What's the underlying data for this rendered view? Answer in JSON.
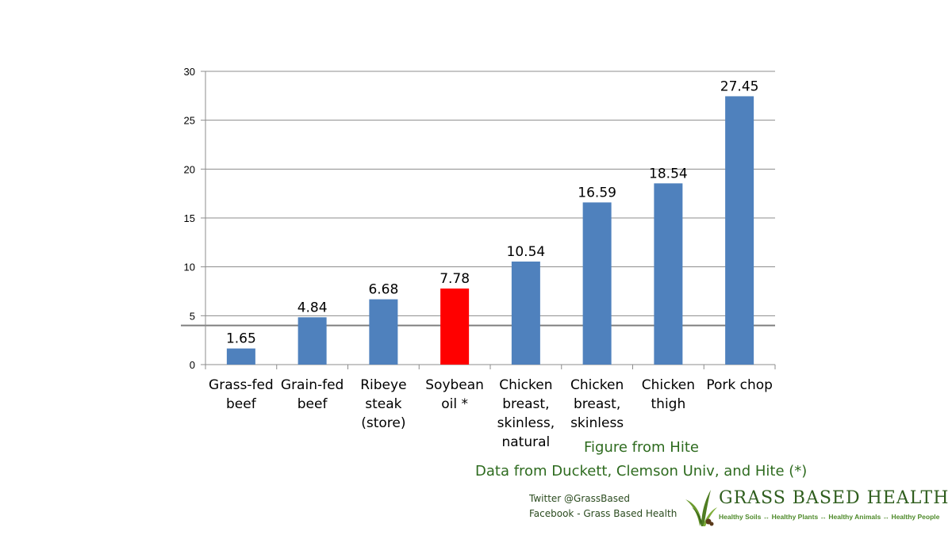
{
  "chart_data": {
    "type": "bar",
    "categories": [
      [
        "Grass-fed",
        "beef"
      ],
      [
        "Grain-fed",
        "beef"
      ],
      [
        "Ribeye",
        "steak",
        "(store)"
      ],
      [
        "Soybean",
        "oil *"
      ],
      [
        "Chicken",
        "breast,",
        "skinless,",
        "natural"
      ],
      [
        "Chicken",
        "breast,",
        "skinless"
      ],
      [
        "Chicken",
        "thigh"
      ],
      [
        "Pork chop"
      ]
    ],
    "values": [
      1.65,
      4.84,
      6.68,
      7.78,
      10.54,
      16.59,
      18.54,
      27.45
    ],
    "value_labels": [
      "1.65",
      "4.84",
      "6.68",
      "7.78",
      "10.54",
      "16.59",
      "18.54",
      "27.45"
    ],
    "bar_colors": [
      "#4f81bd",
      "#4f81bd",
      "#4f81bd",
      "#ff0000",
      "#4f81bd",
      "#4f81bd",
      "#4f81bd",
      "#4f81bd"
    ],
    "ylim": [
      0,
      30
    ],
    "yticks": [
      0,
      5,
      10,
      15,
      20,
      25,
      30
    ],
    "grid": true,
    "reference_line": 4,
    "reference_line_color": "#7f7f7f"
  },
  "credits": {
    "figure": "Figure from Hite",
    "data": "Data from Duckett, Clemson Univ, and Hite (*)"
  },
  "social": {
    "twitter": "Twitter @GrassBased",
    "facebook": "Facebook - Grass Based Health"
  },
  "logo": {
    "name": "Grass Based Health",
    "tagline": "Healthy Soils ↔ Healthy Plants ↔ Healthy Animals ↔ Healthy People",
    "color": "#2f5e1e"
  }
}
